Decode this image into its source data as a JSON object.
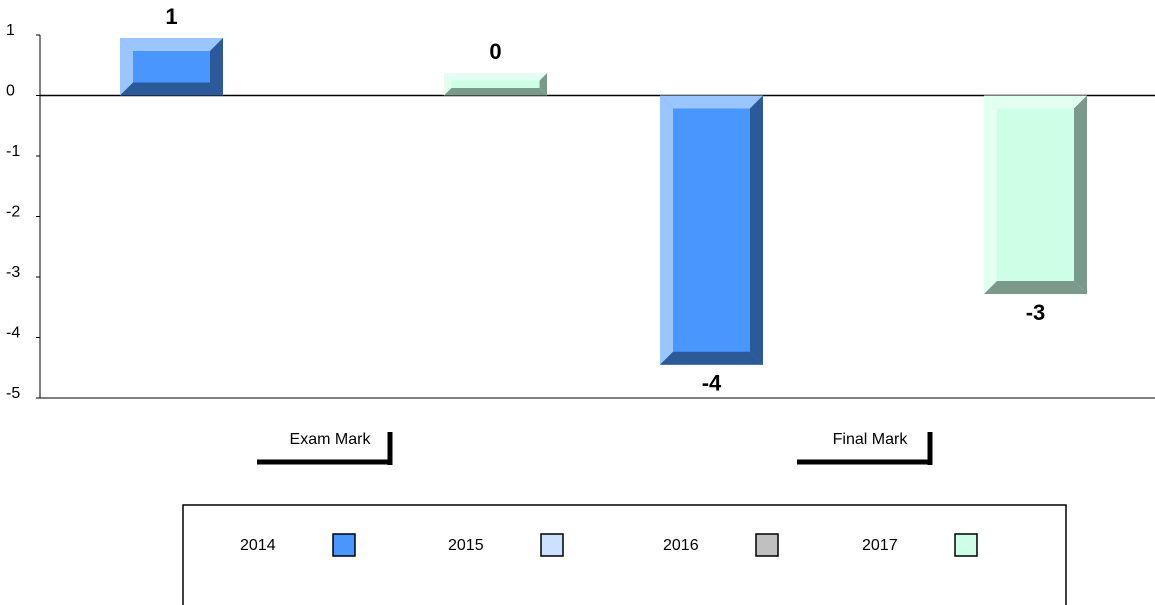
{
  "chart_data": {
    "type": "bar",
    "categories": [
      "Exam Mark",
      "Final Mark"
    ],
    "series": [
      {
        "name": "2014",
        "color": "#4a96ff",
        "values": [
          0.95,
          -4.45
        ],
        "value_labels": [
          "1",
          "-4"
        ]
      },
      {
        "name": "2015",
        "color": "#cce0ff",
        "values": [
          null,
          null
        ]
      },
      {
        "name": "2016",
        "color": "#c0c0c0",
        "values": [
          null,
          null
        ]
      },
      {
        "name": "2017",
        "color": "#ccffe6",
        "values": [
          0.37,
          -3.28
        ],
        "value_labels": [
          "0",
          "-3"
        ]
      }
    ],
    "ylim": [
      -5,
      1
    ],
    "yticks": [
      -5,
      -4,
      -3,
      -2,
      -1,
      0,
      1
    ],
    "legend": "bottom"
  }
}
